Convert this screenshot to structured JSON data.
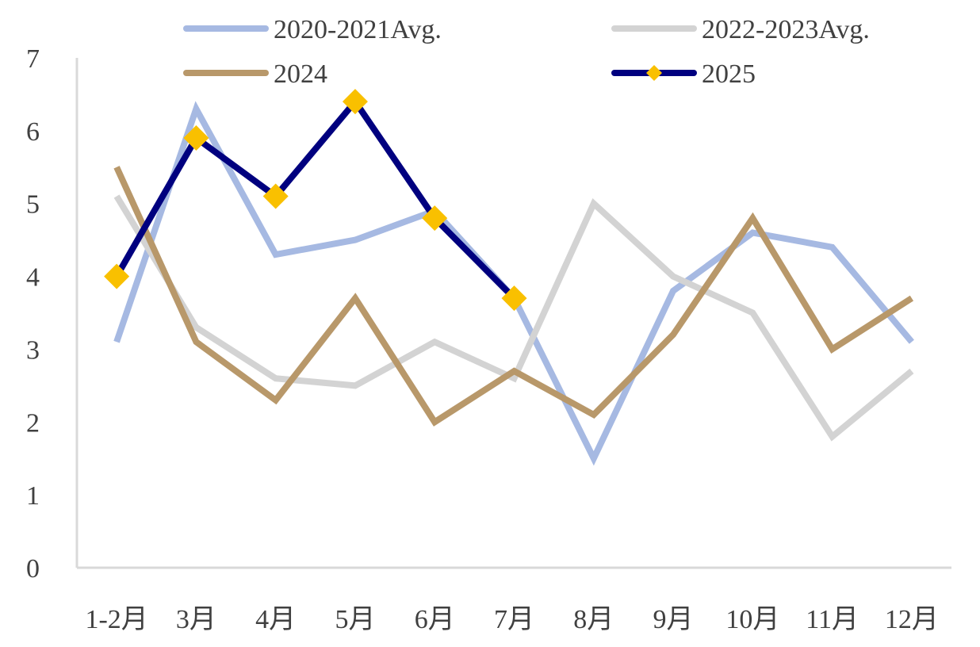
{
  "chart_data": {
    "type": "line",
    "categories": [
      "1-2月",
      "3月",
      "4月",
      "5月",
      "6月",
      "7月",
      "8月",
      "9月",
      "10月",
      "11月",
      "12月"
    ],
    "ylim": [
      0,
      7
    ],
    "yticks": [
      0,
      1,
      2,
      3,
      4,
      5,
      6,
      7
    ],
    "grid": false,
    "legend_position": "top",
    "series": [
      {
        "name": "2020-2021Avg.",
        "color": "#a6b9e2",
        "marker": "none",
        "values": [
          3.1,
          6.3,
          4.3,
          4.5,
          4.9,
          3.7,
          1.5,
          3.8,
          4.6,
          4.4,
          3.1
        ]
      },
      {
        "name": "2022-2023Avg.",
        "color": "#d3d3d3",
        "marker": "none",
        "values": [
          5.1,
          3.3,
          2.6,
          2.5,
          3.1,
          2.6,
          5.0,
          4.0,
          3.5,
          1.8,
          2.7
        ]
      },
      {
        "name": "2024",
        "color": "#b8986a",
        "marker": "none",
        "values": [
          5.5,
          3.1,
          2.3,
          3.7,
          2.0,
          2.7,
          2.1,
          3.2,
          4.8,
          3.0,
          3.7
        ]
      },
      {
        "name": "2025",
        "color": "#00007f",
        "marker": "diamond",
        "marker_color": "#f9c000",
        "values": [
          4.0,
          5.9,
          5.1,
          6.4,
          4.8,
          3.7,
          null,
          null,
          null,
          null,
          null
        ]
      }
    ]
  }
}
